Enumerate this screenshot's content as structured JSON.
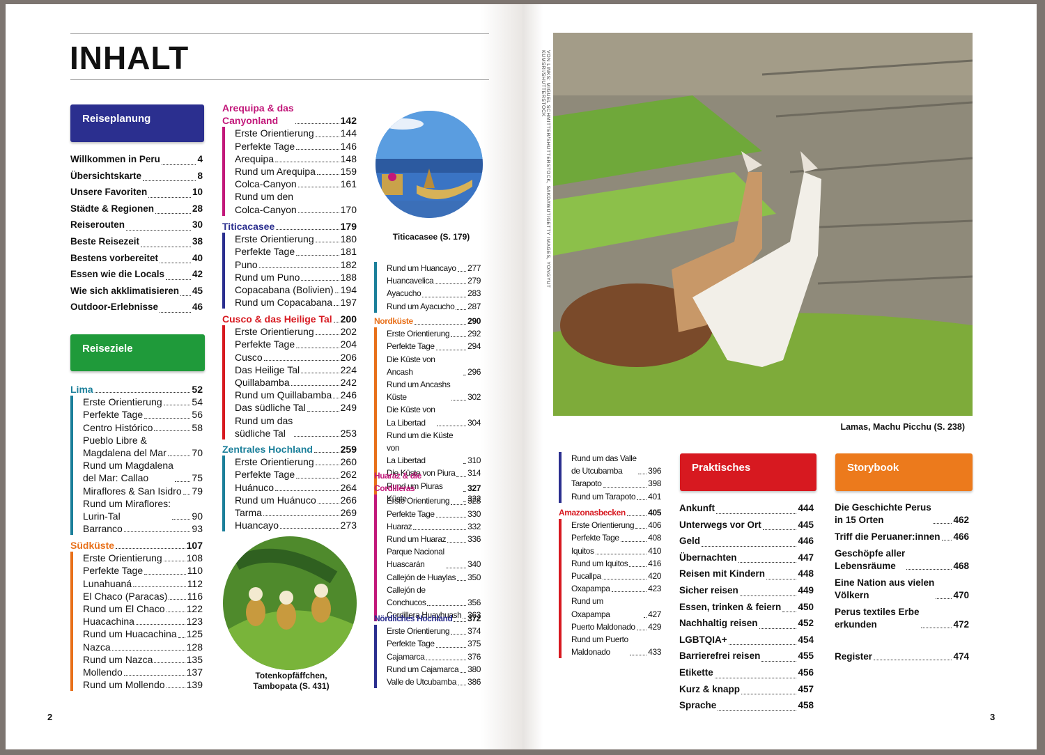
{
  "left_page": {
    "title": "INHALT",
    "page_number": "2",
    "planning": {
      "heading": "Reiseplanung",
      "entries": [
        {
          "label": "Willkommen in Peru",
          "page": "4"
        },
        {
          "label": "Übersichtskarte",
          "page": "8"
        },
        {
          "label": "Unsere Favoriten",
          "page": "10"
        },
        {
          "label": "Städte & Regionen",
          "page": "28"
        },
        {
          "label": "Reiserouten",
          "page": "30"
        },
        {
          "label": "Beste Reisezeit",
          "page": "38"
        },
        {
          "label": "Bestens vorbereitet",
          "page": "40"
        },
        {
          "label": "Essen wie die Locals",
          "page": "42"
        },
        {
          "label": "Wie sich akklimatisieren",
          "page": "45"
        },
        {
          "label": "Outdoor-Erlebnisse",
          "page": "46"
        }
      ]
    },
    "destinations_heading": "Reiseziele",
    "captions": [
      "Titicacasee (S. 179)",
      "Totenkopfäffchen,\nTambopata (S. 431)"
    ]
  },
  "regions": [
    {
      "name": "Lima",
      "page": "52",
      "color": "#1b7f9a",
      "entries": [
        {
          "label": "Erste Orientierung",
          "page": "54"
        },
        {
          "label": "Perfekte Tage",
          "page": "56"
        },
        {
          "label": "Centro Histórico",
          "page": "58"
        },
        {
          "label": "Pueblo Libre &\nMagdalena del Mar",
          "page": "70"
        },
        {
          "label": "Rund um Magdalena\ndel Mar: Callao",
          "page": "75"
        },
        {
          "label": "Miraflores & San Isidro",
          "page": "79"
        },
        {
          "label": "Rund um Miraflores:\nLurin-Tal",
          "page": "90"
        },
        {
          "label": "Barranco",
          "page": "93"
        }
      ]
    },
    {
      "name": "Südküste",
      "page": "107",
      "color": "#e8701a",
      "entries": [
        {
          "label": "Erste Orientierung",
          "page": "108"
        },
        {
          "label": "Perfekte Tage",
          "page": "110"
        },
        {
          "label": "Lunahuaná",
          "page": "112"
        },
        {
          "label": "El Chaco (Paracas)",
          "page": "116"
        },
        {
          "label": "Rund um El Chaco",
          "page": "122"
        },
        {
          "label": "Huacachina",
          "page": "123"
        },
        {
          "label": "Rund um Huacachina",
          "page": "125"
        },
        {
          "label": "Nazca",
          "page": "128"
        },
        {
          "label": "Rund um Nazca",
          "page": "135"
        },
        {
          "label": "Mollendo",
          "page": "137"
        },
        {
          "label": "Rund um Mollendo",
          "page": "139"
        }
      ]
    },
    {
      "name": "Arequipa & das\nCanyonland",
      "page": "142",
      "color": "#c2187a",
      "entries": [
        {
          "label": "Erste Orientierung",
          "page": "144"
        },
        {
          "label": "Perfekte Tage",
          "page": "146"
        },
        {
          "label": "Arequipa",
          "page": "148"
        },
        {
          "label": "Rund um Arequipa",
          "page": "159"
        },
        {
          "label": "Colca-Canyon",
          "page": "161"
        },
        {
          "label": "Rund um den\nColca-Canyon",
          "page": "170"
        }
      ]
    },
    {
      "name": "Titicacasee",
      "page": "179",
      "color": "#2b2f8f",
      "entries": [
        {
          "label": "Erste Orientierung",
          "page": "180"
        },
        {
          "label": "Perfekte Tage",
          "page": "181"
        },
        {
          "label": "Puno",
          "page": "182"
        },
        {
          "label": "Rund um Puno",
          "page": "188"
        },
        {
          "label": "Copacabana (Bolivien)",
          "page": "194"
        },
        {
          "label": "Rund um Copacabana",
          "page": "197"
        }
      ]
    },
    {
      "name": "Cusco & das Heilige Tal",
      "page": "200",
      "color": "#d71920",
      "entries": [
        {
          "label": "Erste Orientierung",
          "page": "202"
        },
        {
          "label": "Perfekte Tage",
          "page": "204"
        },
        {
          "label": "Cusco",
          "page": "206"
        },
        {
          "label": "Das Heilige Tal",
          "page": "224"
        },
        {
          "label": "Quillabamba",
          "page": "242"
        },
        {
          "label": "Rund um Quillabamba",
          "page": "246"
        },
        {
          "label": "Das südliche Tal",
          "page": "249"
        },
        {
          "label": "Rund um das\nsüdliche Tal",
          "page": "253"
        }
      ]
    },
    {
      "name": "Zentrales Hochland",
      "page": "259",
      "color": "#1b7f9a",
      "entries": [
        {
          "label": "Erste Orientierung",
          "page": "260"
        },
        {
          "label": "Perfekte Tage",
          "page": "262"
        },
        {
          "label": "Huánuco",
          "page": "264"
        },
        {
          "label": "Rund um Huánuco",
          "page": "266"
        },
        {
          "label": "Tarma",
          "page": "269"
        },
        {
          "label": "Huancayo",
          "page": "273"
        },
        {
          "label": "Rund um Huancayo",
          "page": "277"
        },
        {
          "label": "Huancavelica",
          "page": "279"
        },
        {
          "label": "Ayacucho",
          "page": "283"
        },
        {
          "label": "Rund um Ayacucho",
          "page": "287"
        }
      ]
    },
    {
      "name": "Nordküste",
      "page": "290",
      "color": "#e8701a",
      "entries": [
        {
          "label": "Erste Orientierung",
          "page": "292"
        },
        {
          "label": "Perfekte Tage",
          "page": "294"
        },
        {
          "label": "Die Küste von Ancash",
          "page": "296"
        },
        {
          "label": "Rund um Ancashs\nKüste",
          "page": "302"
        },
        {
          "label": "Die Küste von\nLa Libertad",
          "page": "304"
        },
        {
          "label": "Rund um die Küste von\nLa Libertad",
          "page": "310"
        },
        {
          "label": "Die Küste von Piura",
          "page": "314"
        },
        {
          "label": "Rund um Piuras Küste",
          "page": "322"
        }
      ]
    },
    {
      "name": "Huaraz & die Cordilleras",
      "page": "327",
      "color": "#c2187a",
      "entries": [
        {
          "label": "Erste Orientierung",
          "page": "328"
        },
        {
          "label": "Perfekte Tage",
          "page": "330"
        },
        {
          "label": "Huaraz",
          "page": "332"
        },
        {
          "label": "Rund um Huaraz",
          "page": "336"
        },
        {
          "label": "Parque Nacional\nHuascarán",
          "page": "340"
        },
        {
          "label": "Callejón de Huaylas",
          "page": "350"
        },
        {
          "label": "Callejón de\nConchucos",
          "page": "356"
        },
        {
          "label": "Cordillera Huayhuash",
          "page": "363"
        }
      ]
    },
    {
      "name": "Nördliches Hochland",
      "page": "372",
      "color": "#2b2f8f",
      "entries": [
        {
          "label": "Erste Orientierung",
          "page": "374"
        },
        {
          "label": "Perfekte Tage",
          "page": "375"
        },
        {
          "label": "Cajamarca",
          "page": "376"
        },
        {
          "label": "Rund um Cajamarca",
          "page": "380"
        },
        {
          "label": "Valle de Utcubamba",
          "page": "386"
        },
        {
          "label": "Rund um das Valle\nde Utcubamba",
          "page": "396"
        },
        {
          "label": "Tarapoto",
          "page": "398"
        },
        {
          "label": "Rund um Tarapoto",
          "page": "401"
        }
      ]
    },
    {
      "name": "Amazonasbecken",
      "page": "405",
      "color": "#d71920",
      "entries": [
        {
          "label": "Erste Orientierung",
          "page": "406"
        },
        {
          "label": "Perfekte Tage",
          "page": "408"
        },
        {
          "label": "Iquitos",
          "page": "410"
        },
        {
          "label": "Rund um Iquitos",
          "page": "416"
        },
        {
          "label": "Pucallpa",
          "page": "420"
        },
        {
          "label": "Oxapampa",
          "page": "423"
        },
        {
          "label": "Rund um Oxapampa",
          "page": "427"
        },
        {
          "label": "Puerto Maldonado",
          "page": "429"
        },
        {
          "label": "Rund um Puerto\nMaldonado",
          "page": "433"
        }
      ]
    }
  ],
  "right_page": {
    "page_number": "3",
    "credit": "Von links: Miguel Schmitter/Shutterstock, Sakdawut/Getty Images, Yongyut Kumsri/Shutterstock",
    "caption": "Lamas, Machu Picchu (S. 238)",
    "practical": {
      "heading": "Praktisches",
      "entries": [
        {
          "label": "Ankunft",
          "page": "444"
        },
        {
          "label": "Unterwegs vor Ort",
          "page": "445"
        },
        {
          "label": "Geld",
          "page": "446"
        },
        {
          "label": "Übernachten",
          "page": "447"
        },
        {
          "label": "Reisen mit Kindern",
          "page": "448"
        },
        {
          "label": "Sicher reisen",
          "page": "449"
        },
        {
          "label": "Essen, trinken & feiern",
          "page": "450"
        },
        {
          "label": "Nachhaltig reisen",
          "page": "452"
        },
        {
          "label": "LGBTQIA+",
          "page": "454"
        },
        {
          "label": "Barrierefrei reisen",
          "page": "455"
        },
        {
          "label": "Etikette",
          "page": "456"
        },
        {
          "label": "Kurz & knapp",
          "page": "457"
        },
        {
          "label": "Sprache",
          "page": "458"
        }
      ]
    },
    "storybook": {
      "heading": "Storybook",
      "entries": [
        {
          "label": "Die Geschichte Perus\nin 15 Orten",
          "page": "462"
        },
        {
          "label": "Triff die Peruaner:innen",
          "page": "466"
        },
        {
          "label": "Geschöpfe aller\nLebensräume",
          "page": "468"
        },
        {
          "label": "Eine  Nation aus vielen\nVölkern",
          "page": "470"
        },
        {
          "label": "Perus textiles Erbe\nerkunden",
          "page": "472"
        },
        {
          "label": "Register",
          "page": "474"
        }
      ]
    }
  }
}
